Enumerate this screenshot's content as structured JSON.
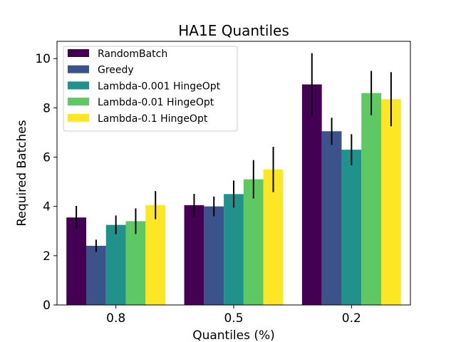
{
  "chart_data": {
    "type": "bar",
    "title": "HA1E Quantiles",
    "xlabel": "Quantiles (%)",
    "ylabel": "Required Batches",
    "categories": [
      "0.8",
      "0.5",
      "0.2"
    ],
    "ylim": [
      0,
      10.7
    ],
    "yticks": [
      "0",
      "2",
      "4",
      "6",
      "8",
      "10"
    ],
    "legend_position": "top-left",
    "grid": false,
    "series": [
      {
        "name": "RandomBatch",
        "color": "#440154",
        "values": [
          3.55,
          4.05,
          8.95
        ],
        "errors": [
          0.47,
          0.46,
          1.27
        ]
      },
      {
        "name": "Greedy",
        "color": "#3b528b",
        "values": [
          2.4,
          4.0,
          7.05
        ],
        "errors": [
          0.25,
          0.4,
          0.55
        ]
      },
      {
        "name": "Lambda-0.001 HingeOpt",
        "color": "#21918c",
        "values": [
          3.25,
          4.5,
          6.3
        ],
        "errors": [
          0.38,
          0.55,
          0.63
        ]
      },
      {
        "name": "Lambda-0.01 HingeOpt",
        "color": "#5ec962",
        "values": [
          3.4,
          5.1,
          8.6
        ],
        "errors": [
          0.52,
          0.78,
          0.9
        ]
      },
      {
        "name": "Lambda-0.1 HingeOpt",
        "color": "#fde725",
        "values": [
          4.05,
          5.5,
          8.35
        ],
        "errors": [
          0.57,
          0.92,
          1.1
        ]
      }
    ]
  }
}
